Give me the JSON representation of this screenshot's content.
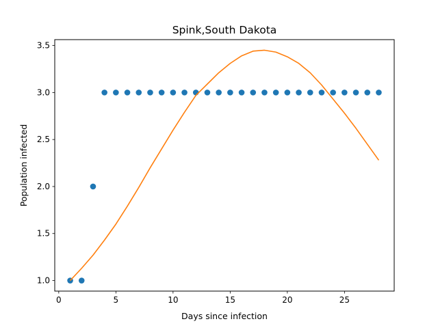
{
  "chart_data": {
    "type": "scatter",
    "title": "Spink,South Dakota",
    "xlabel": "Days since infection",
    "ylabel": "Population infected",
    "xlim": [
      -0.35,
      29.35
    ],
    "ylim": [
      0.8875,
      3.5625
    ],
    "xticks": [
      0,
      5,
      10,
      15,
      20,
      25
    ],
    "yticks": [
      1.0,
      1.5,
      2.0,
      2.5,
      3.0,
      3.5
    ],
    "xtick_labels": [
      "0",
      "5",
      "10",
      "15",
      "20",
      "25"
    ],
    "ytick_labels": [
      "1.0",
      "1.5",
      "2.0",
      "2.5",
      "3.0",
      "3.5"
    ],
    "grid": false,
    "legend": false,
    "series": [
      {
        "kind": "scatter",
        "color": "#1f77b4",
        "x": [
          1,
          2,
          3,
          4,
          5,
          6,
          7,
          8,
          9,
          10,
          11,
          12,
          13,
          14,
          15,
          16,
          17,
          18,
          19,
          20,
          21,
          22,
          23,
          24,
          25,
          26,
          27,
          28
        ],
        "y": [
          1,
          1,
          2,
          3,
          3,
          3,
          3,
          3,
          3,
          3,
          3,
          3,
          3,
          3,
          3,
          3,
          3,
          3,
          3,
          3,
          3,
          3,
          3,
          3,
          3,
          3,
          3,
          3
        ]
      },
      {
        "kind": "line",
        "color": "#ff7f0e",
        "x": [
          1,
          2,
          3,
          4,
          5,
          6,
          7,
          8,
          9,
          10,
          11,
          12,
          13,
          14,
          15,
          16,
          17,
          18,
          19,
          20,
          21,
          22,
          23,
          24,
          25,
          26,
          27,
          28
        ],
        "y": [
          1.0,
          1.13,
          1.27,
          1.43,
          1.6,
          1.79,
          1.99,
          2.2,
          2.4,
          2.6,
          2.79,
          2.97,
          3.09,
          3.21,
          3.31,
          3.39,
          3.44,
          3.45,
          3.43,
          3.38,
          3.31,
          3.21,
          3.08,
          2.93,
          2.78,
          2.62,
          2.45,
          2.28
        ]
      }
    ]
  }
}
